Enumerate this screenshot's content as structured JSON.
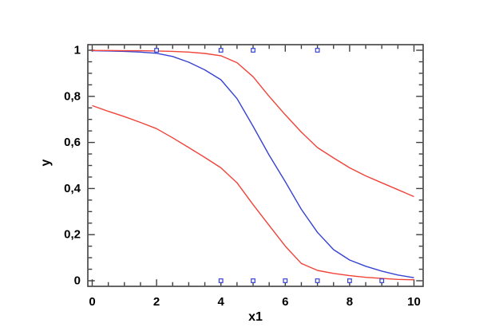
{
  "figure": {
    "background": "#ffffff",
    "frame_color": "#3f3f3f",
    "text_color": "#000000",
    "accent_blue": "#3642d2",
    "accent_red": "#f04339"
  },
  "chart_data": {
    "type": "line",
    "title": "",
    "xlabel": "x1",
    "ylabel": "y",
    "xlim": [
      0,
      10
    ],
    "ylim": [
      0,
      1
    ],
    "grid": false,
    "legend": "none",
    "decimal_separator": ",",
    "x_major_ticks": [
      0,
      2,
      4,
      6,
      8,
      10
    ],
    "x_major_labels": [
      "0",
      "2",
      "4",
      "6",
      "8",
      "10"
    ],
    "x_minor_step": 0.5,
    "y_major_ticks": [
      0,
      0.2,
      0.4,
      0.6,
      0.8,
      1
    ],
    "y_major_labels": [
      "0",
      "0,2",
      "0,4",
      "0,6",
      "0,8",
      "1"
    ],
    "y_minor_step": 0.05,
    "series": [
      {
        "name": "fitted-probability-curve",
        "type": "line",
        "color": "#3642d2",
        "x": [
          0,
          0.5,
          1,
          1.5,
          2,
          2.5,
          3,
          3.5,
          4,
          4.5,
          5,
          5.5,
          6,
          6.5,
          7,
          7.5,
          8,
          8.5,
          9,
          9.5,
          10
        ],
        "y": [
          0.998,
          0.997,
          0.995,
          0.992,
          0.987,
          0.973,
          0.948,
          0.915,
          0.872,
          0.79,
          0.67,
          0.545,
          0.43,
          0.31,
          0.21,
          0.135,
          0.09,
          0.063,
          0.042,
          0.025,
          0.013
        ]
      },
      {
        "name": "upper-confidence-band",
        "type": "line",
        "color": "#f04339",
        "x": [
          0,
          0.5,
          1,
          1.5,
          2,
          2.5,
          3,
          3.5,
          4,
          4.5,
          5,
          5.5,
          6,
          6.5,
          7,
          7.5,
          8,
          8.5,
          9,
          9.5,
          10
        ],
        "y": [
          0.999,
          0.999,
          0.998,
          0.998,
          0.997,
          0.995,
          0.992,
          0.986,
          0.976,
          0.946,
          0.885,
          0.8,
          0.72,
          0.645,
          0.578,
          0.533,
          0.49,
          0.455,
          0.425,
          0.395,
          0.365
        ]
      },
      {
        "name": "lower-confidence-band",
        "type": "line",
        "color": "#f04339",
        "x": [
          0,
          0.5,
          1,
          1.5,
          2,
          2.5,
          3,
          3.5,
          4,
          4.5,
          5,
          5.5,
          6,
          6.5,
          7,
          7.5,
          8,
          8.5,
          9,
          9.5,
          10
        ],
        "y": [
          0.76,
          0.735,
          0.712,
          0.687,
          0.66,
          0.62,
          0.578,
          0.535,
          0.49,
          0.425,
          0.33,
          0.24,
          0.15,
          0.075,
          0.045,
          0.032,
          0.022,
          0.015,
          0.01,
          0.006,
          0.004
        ]
      },
      {
        "name": "binary-observations",
        "type": "scatter",
        "marker": "open-square",
        "color": "#3642d2",
        "points": [
          [
            2,
            1
          ],
          [
            4,
            1
          ],
          [
            5,
            1
          ],
          [
            7,
            1
          ],
          [
            4,
            0
          ],
          [
            5,
            0
          ],
          [
            6,
            0
          ],
          [
            7,
            0
          ],
          [
            8,
            0
          ],
          [
            9,
            0
          ]
        ]
      }
    ]
  }
}
